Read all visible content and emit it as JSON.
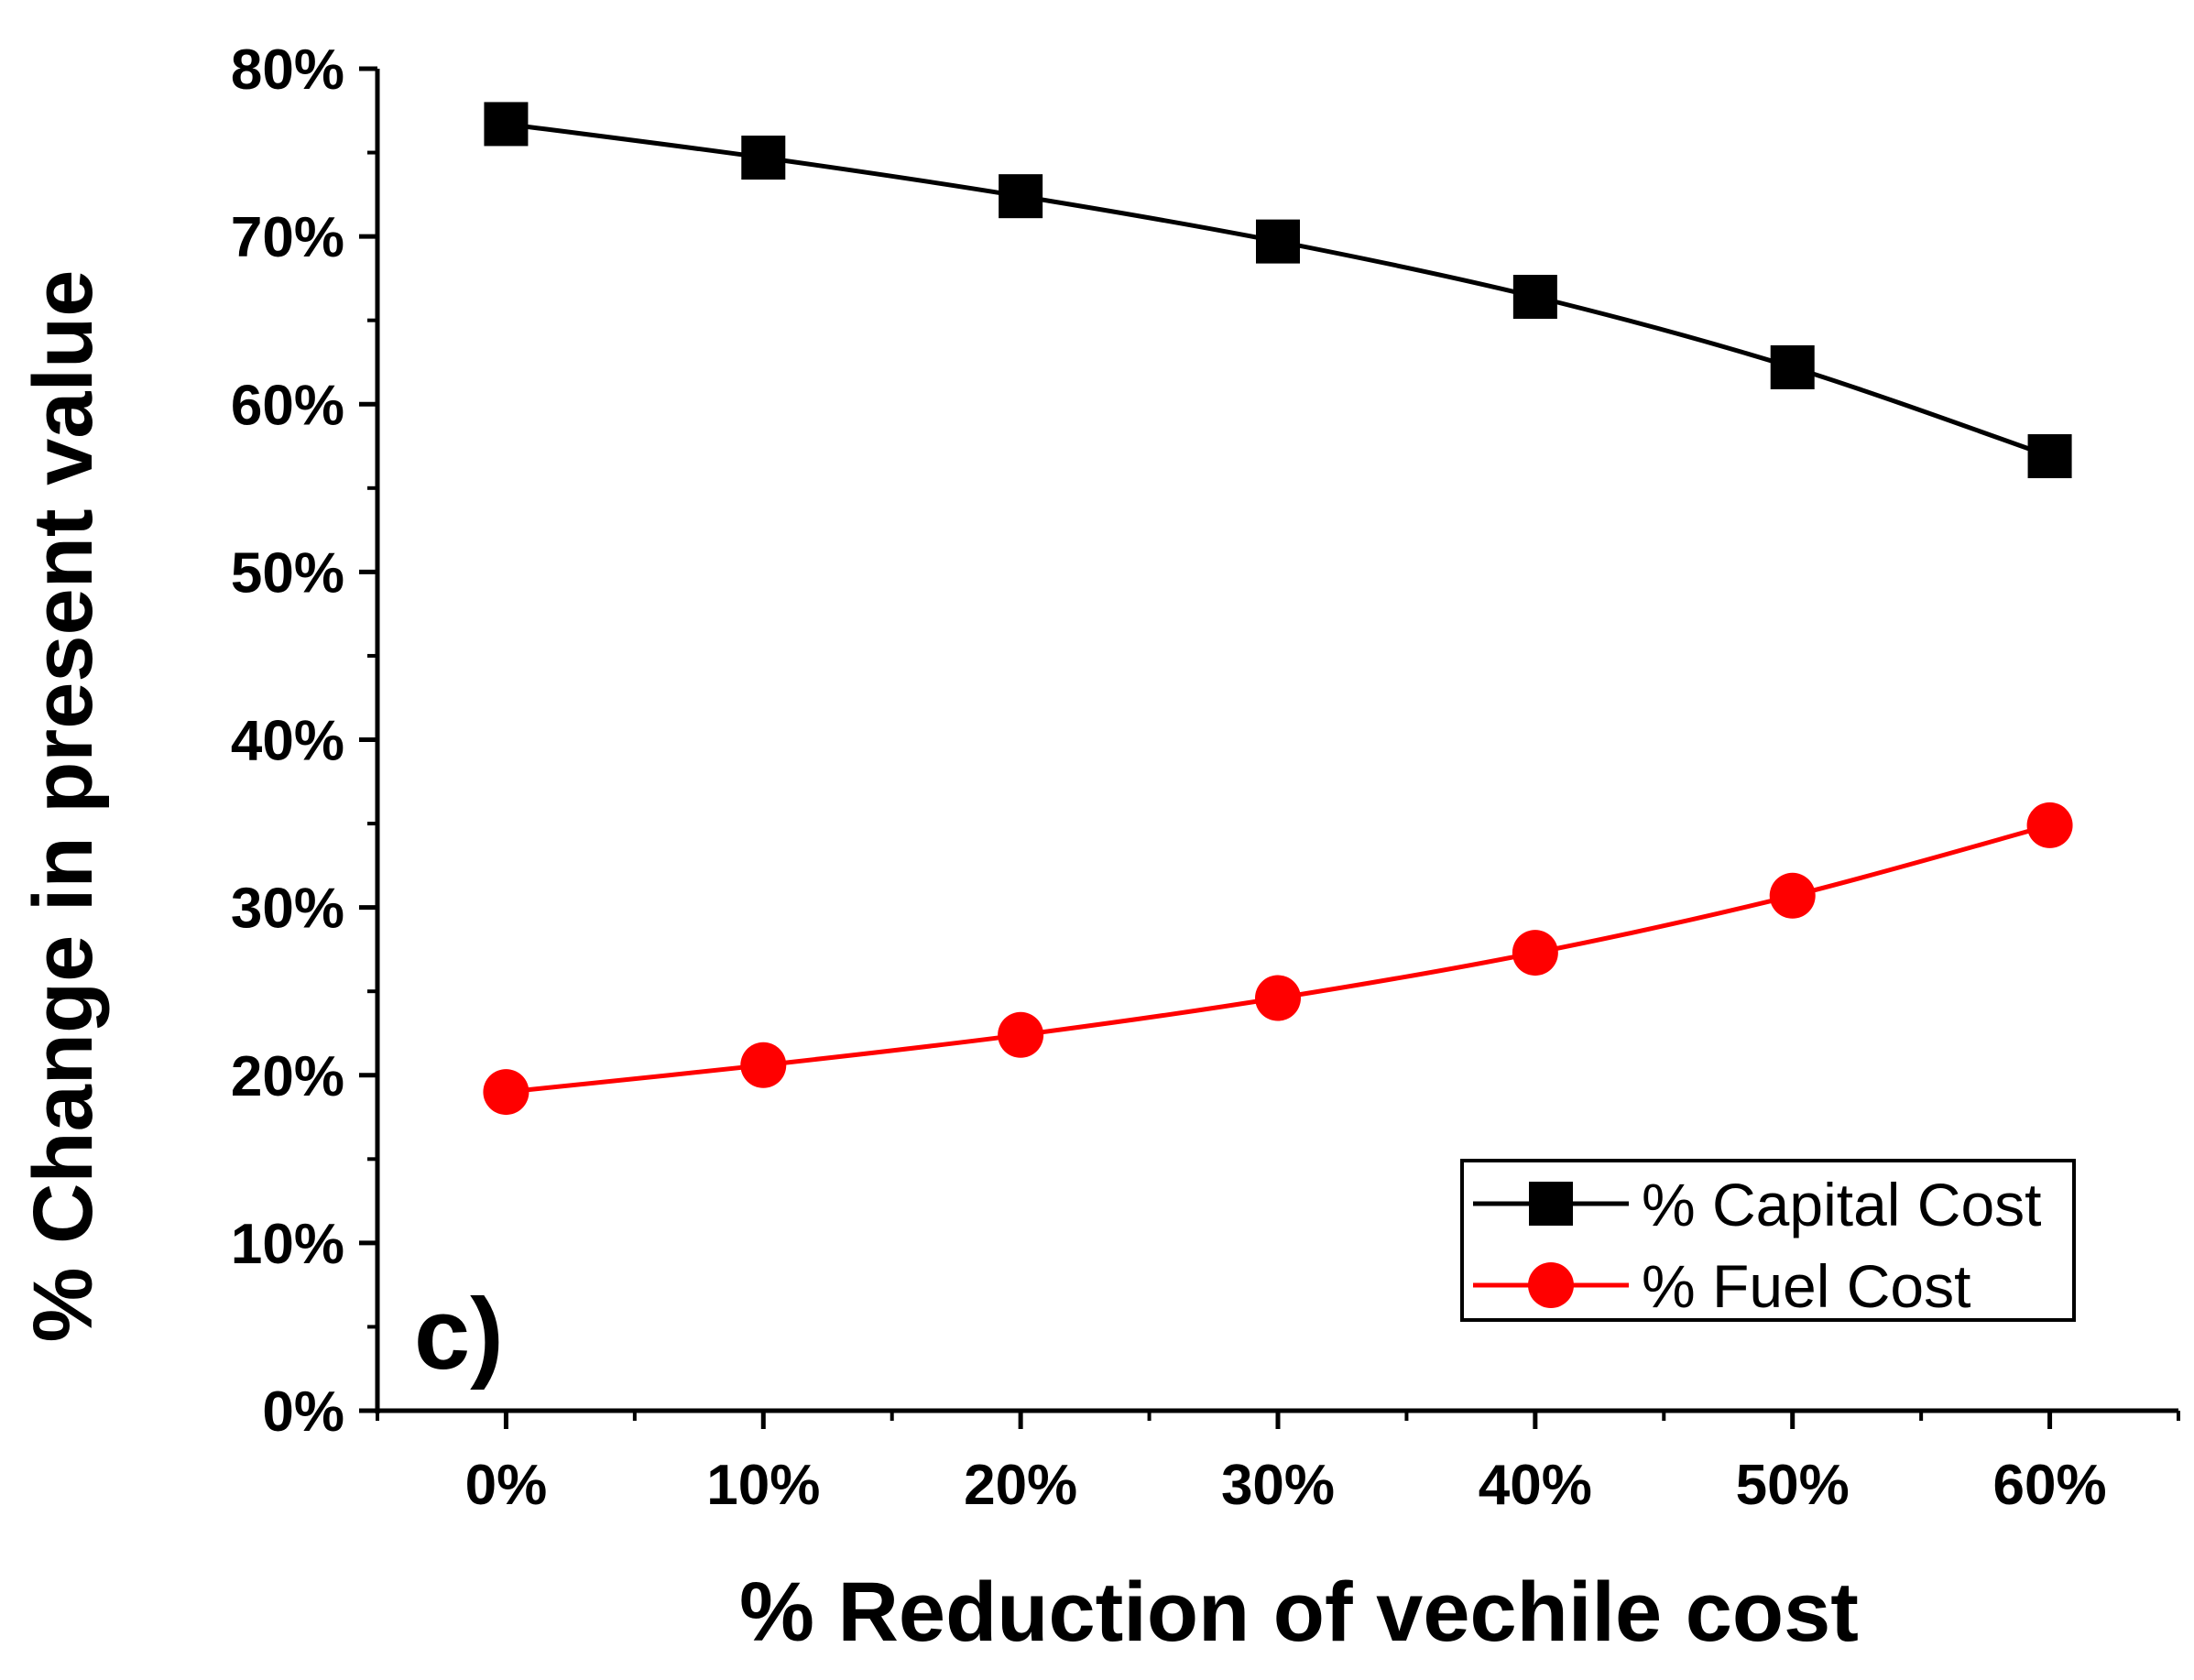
{
  "chart_data": {
    "type": "line",
    "title": "",
    "panel_label": "c)",
    "xlabel": "% Reduction of vechile cost",
    "ylabel": "% Change in present value",
    "categories": [
      "0%",
      "10%",
      "20%",
      "30%",
      "40%",
      "50%",
      "60%"
    ],
    "x": [
      0,
      10,
      20,
      30,
      40,
      50,
      60
    ],
    "xlim": [
      -5,
      65
    ],
    "ylim": [
      0,
      80
    ],
    "y_ticks": [
      0,
      10,
      20,
      30,
      40,
      50,
      60,
      70,
      80
    ],
    "y_tick_labels": [
      "0%",
      "10%",
      "20%",
      "30%",
      "40%",
      "50%",
      "60%",
      "70%",
      "80%"
    ],
    "grid": false,
    "legend_position": "bottom-right",
    "series": [
      {
        "name": "% Capital Cost",
        "color": "#000000",
        "marker": "square",
        "values": [
          76.7,
          74.7,
          72.4,
          69.7,
          66.4,
          62.2,
          56.9
        ]
      },
      {
        "name": "% Fuel Cost",
        "color": "#ff0000",
        "marker": "circle",
        "values": [
          19.0,
          20.6,
          22.4,
          24.6,
          27.3,
          30.7,
          34.9
        ]
      }
    ]
  }
}
